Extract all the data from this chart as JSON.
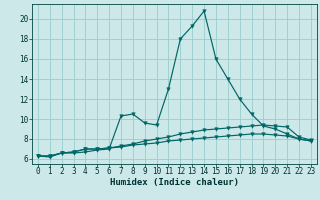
{
  "xlabel": "Humidex (Indice chaleur)",
  "background_color": "#cce8e8",
  "grid_color": "#99cccc",
  "line_color": "#006666",
  "x_ticks": [
    0,
    1,
    2,
    3,
    4,
    5,
    6,
    7,
    8,
    9,
    10,
    11,
    12,
    13,
    14,
    15,
    16,
    17,
    18,
    19,
    20,
    21,
    22,
    23
  ],
  "y_ticks": [
    6,
    8,
    10,
    12,
    14,
    16,
    18,
    20
  ],
  "ylim": [
    5.5,
    21.5
  ],
  "xlim": [
    -0.5,
    23.5
  ],
  "curve1": [
    6.3,
    6.2,
    6.6,
    6.6,
    6.7,
    6.9,
    7.0,
    10.3,
    10.5,
    9.6,
    9.4,
    13.0,
    18.0,
    19.3,
    20.8,
    16.0,
    14.0,
    12.0,
    10.5,
    9.3,
    9.0,
    8.5,
    8.0,
    7.8
  ],
  "curve2": [
    6.3,
    6.3,
    6.6,
    6.7,
    7.0,
    7.0,
    7.1,
    7.3,
    7.5,
    7.8,
    8.0,
    8.2,
    8.5,
    8.7,
    8.9,
    9.0,
    9.1,
    9.2,
    9.3,
    9.4,
    9.3,
    9.2,
    8.2,
    7.9
  ],
  "curve3": [
    6.3,
    6.3,
    6.6,
    6.7,
    7.0,
    7.0,
    7.1,
    7.2,
    7.4,
    7.5,
    7.6,
    7.8,
    7.9,
    8.0,
    8.1,
    8.2,
    8.3,
    8.4,
    8.5,
    8.5,
    8.4,
    8.3,
    8.0,
    7.8
  ],
  "tick_fontsize": 5.5,
  "xlabel_fontsize": 6.5
}
